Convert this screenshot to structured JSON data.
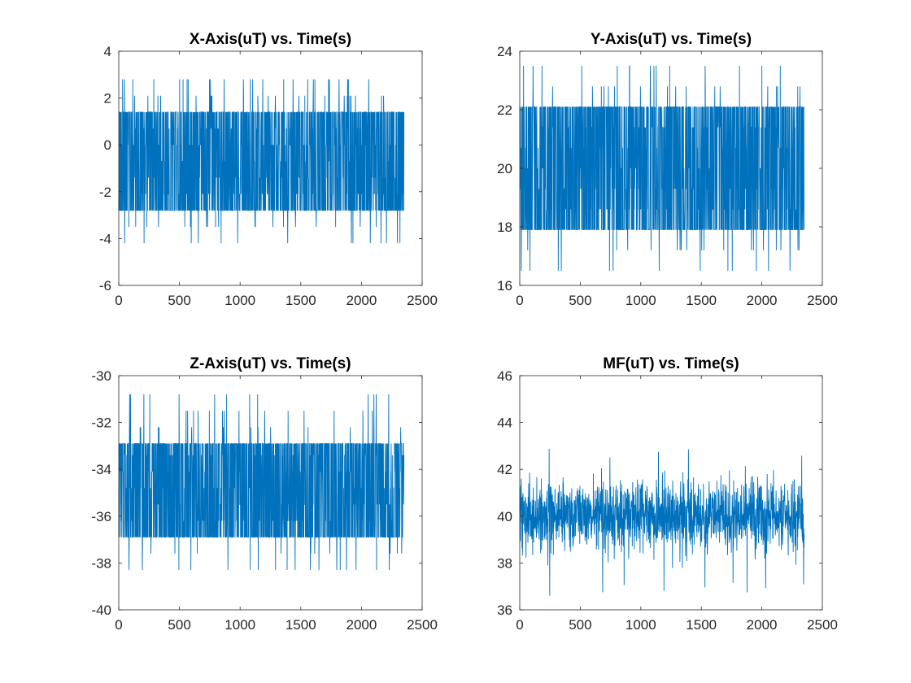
{
  "colors": {
    "series": "#0072BD",
    "axis": "#262626",
    "background": "#ffffff"
  },
  "chart_data": [
    {
      "type": "line",
      "title": "X-Axis(uT) vs. Time(s)",
      "xlabel": "",
      "ylabel": "",
      "xlim": [
        0,
        2500
      ],
      "ylim": [
        -6,
        4
      ],
      "xticks": [
        0,
        500,
        1000,
        1500,
        2000,
        2500
      ],
      "yticks": [
        -6,
        -4,
        -2,
        0,
        2,
        4
      ],
      "x_range": [
        0,
        2350
      ],
      "band": {
        "low": -2.8,
        "high": 1.4
      },
      "quantized": true,
      "levels": [
        -4.2,
        -3.5,
        -2.8,
        -2.1,
        -1.4,
        -0.7,
        0,
        0.7,
        1.4,
        2.1,
        2.8
      ],
      "series": [
        {
          "values_summary": {
            "min": -4.2,
            "max": 2.8,
            "mean": -0.7
          }
        }
      ],
      "grid": false,
      "legend": "none"
    },
    {
      "type": "line",
      "title": "Y-Axis(uT) vs. Time(s)",
      "xlabel": "",
      "ylabel": "",
      "xlim": [
        0,
        2500
      ],
      "ylim": [
        16,
        24
      ],
      "xticks": [
        0,
        500,
        1000,
        1500,
        2000,
        2500
      ],
      "yticks": [
        16,
        18,
        20,
        22,
        24
      ],
      "x_range": [
        0,
        2350
      ],
      "band": {
        "low": 17.9,
        "high": 22.1
      },
      "quantized": true,
      "levels": [
        16.5,
        17.2,
        17.9,
        18.6,
        19.3,
        20.0,
        20.7,
        21.4,
        22.1,
        22.8,
        23.5
      ],
      "series": [
        {
          "values_summary": {
            "min": 16.5,
            "max": 23.5,
            "mean": 20.0
          }
        }
      ],
      "grid": false,
      "legend": "none"
    },
    {
      "type": "line",
      "title": "Z-Axis(uT) vs. Time(s)",
      "xlabel": "",
      "ylabel": "",
      "xlim": [
        0,
        2500
      ],
      "ylim": [
        -40,
        -30
      ],
      "xticks": [
        0,
        500,
        1000,
        1500,
        2000,
        2500
      ],
      "yticks": [
        -40,
        -38,
        -36,
        -34,
        -32,
        -30
      ],
      "x_range": [
        0,
        2350
      ],
      "band": {
        "low": -36.9,
        "high": -32.9
      },
      "quantized": true,
      "levels": [
        -38.3,
        -37.6,
        -36.9,
        -36.2,
        -35.5,
        -34.8,
        -34.1,
        -33.4,
        -32.9,
        -32.2,
        -31.5,
        -30.8
      ],
      "series": [
        {
          "values_summary": {
            "min": -38.3,
            "max": -30.8,
            "mean": -34.9
          }
        }
      ],
      "grid": false,
      "legend": "none"
    },
    {
      "type": "line",
      "title": "MF(uT) vs. Time(s)",
      "xlabel": "",
      "ylabel": "",
      "xlim": [
        0,
        2500
      ],
      "ylim": [
        36,
        46
      ],
      "xticks": [
        0,
        500,
        1000,
        1500,
        2000,
        2500
      ],
      "yticks": [
        36,
        38,
        40,
        42,
        44,
        46
      ],
      "x_range": [
        0,
        2350
      ],
      "band": {
        "low": 38.3,
        "high": 41.7
      },
      "quantized": false,
      "series": [
        {
          "values_summary": {
            "min": 36.6,
            "max": 44.0,
            "mean": 40.0
          }
        }
      ],
      "grid": false,
      "legend": "none"
    }
  ]
}
